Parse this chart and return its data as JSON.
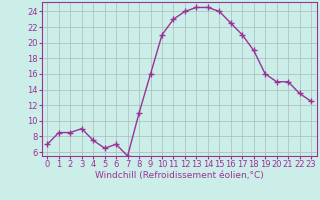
{
  "x": [
    0,
    1,
    2,
    3,
    4,
    5,
    6,
    7,
    8,
    9,
    10,
    11,
    12,
    13,
    14,
    15,
    16,
    17,
    18,
    19,
    20,
    21,
    22,
    23
  ],
  "y": [
    7,
    8.5,
    8.5,
    9,
    7.5,
    6.5,
    7,
    5.5,
    11,
    16,
    21,
    23,
    24,
    24.5,
    24.5,
    24,
    22.5,
    21,
    19,
    16,
    15,
    15,
    13.5,
    12.5
  ],
  "line_color": "#993399",
  "marker": "+",
  "markersize": 4,
  "linewidth": 1.0,
  "xlabel": "Windchill (Refroidissement éolien,°C)",
  "xlabel_fontsize": 6.5,
  "ylabel_ticks": [
    6,
    8,
    10,
    12,
    14,
    16,
    18,
    20,
    22,
    24
  ],
  "ylim": [
    5.5,
    25.2
  ],
  "xlim": [
    -0.5,
    23.5
  ],
  "bg_color": "#cceee8",
  "grid_color": "#aabbbb",
  "tick_fontsize": 6.0,
  "xtick_labels": [
    "0",
    "1",
    "2",
    "3",
    "4",
    "5",
    "6",
    "7",
    "8",
    "9",
    "10",
    "11",
    "12",
    "13",
    "14",
    "15",
    "16",
    "17",
    "18",
    "19",
    "20",
    "21",
    "22",
    "23"
  ]
}
